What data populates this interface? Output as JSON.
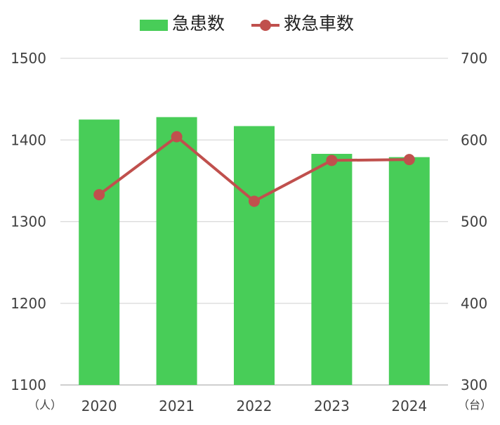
{
  "chart_data": {
    "type": "bar",
    "categories": [
      "2020",
      "2021",
      "2022",
      "2023",
      "2024"
    ],
    "series": [
      {
        "name": "急患数",
        "type": "bar",
        "axis": "left",
        "color": "#48CD58",
        "values": [
          1425,
          1428,
          1417,
          1383,
          1379
        ]
      },
      {
        "name": "救急車数",
        "type": "line",
        "axis": "right",
        "color": "#C0504D",
        "values": [
          533,
          604,
          525,
          575,
          576
        ]
      }
    ],
    "y_left": {
      "ylim": [
        1100,
        1500
      ],
      "ticks": [
        "1100",
        "1200",
        "1300",
        "1400",
        "1500"
      ],
      "unit": "（人）"
    },
    "y_right": {
      "ylim": [
        300,
        700
      ],
      "ticks": [
        "300",
        "400",
        "500",
        "600",
        "700"
      ],
      "unit": "（台）"
    },
    "grid": true,
    "legend_position": "top"
  }
}
